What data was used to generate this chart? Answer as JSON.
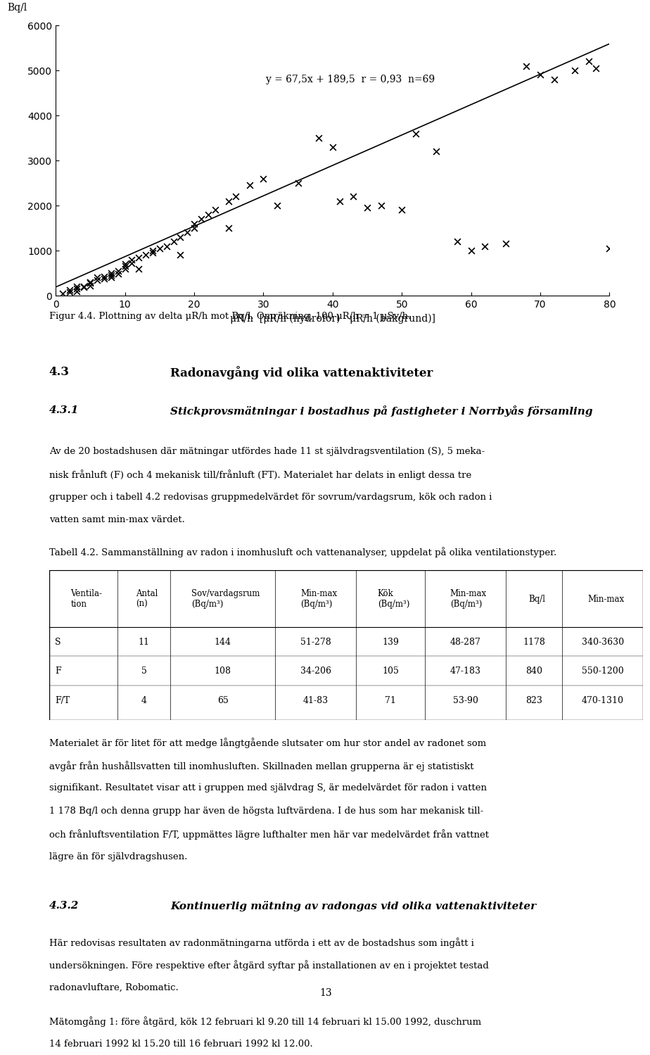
{
  "scatter_x": [
    1,
    2,
    2,
    3,
    3,
    4,
    4,
    5,
    5,
    5,
    6,
    6,
    7,
    7,
    8,
    8,
    9,
    9,
    10,
    10,
    10,
    11,
    11,
    12,
    13,
    14,
    14,
    15,
    16,
    17,
    18,
    19,
    20,
    20,
    21,
    22,
    23,
    25,
    26,
    28,
    30,
    32,
    35,
    38,
    40,
    41,
    43,
    45,
    47,
    50,
    52,
    55,
    58,
    60,
    62,
    65,
    68,
    70,
    72,
    75,
    77,
    78,
    80,
    3,
    5,
    8,
    12,
    18,
    25
  ],
  "scatter_y": [
    50,
    80,
    120,
    100,
    150,
    180,
    200,
    220,
    280,
    300,
    350,
    400,
    380,
    420,
    450,
    500,
    480,
    550,
    600,
    650,
    700,
    720,
    800,
    850,
    900,
    950,
    1000,
    1050,
    1100,
    1200,
    1300,
    1400,
    1500,
    1600,
    1700,
    1800,
    1900,
    2100,
    2200,
    2450,
    2600,
    2000,
    2500,
    3500,
    3300,
    2100,
    2200,
    1950,
    2000,
    1900,
    3600,
    3200,
    1200,
    1000,
    1100,
    1150,
    5100,
    4900,
    4800,
    5000,
    5200,
    5050,
    1050,
    200,
    300,
    400,
    600,
    900,
    1500
  ],
  "equation": "y = 67,5x + 189,5  r = 0,93  n=69",
  "xlabel": "μR/h  [μR/h (hydrofor) - μR/h (bakgrund)]",
  "ylabel": "Bq/l",
  "xlim": [
    0,
    80
  ],
  "ylim": [
    0,
    6000
  ],
  "xticks": [
    0,
    10,
    20,
    30,
    40,
    50,
    60,
    70,
    80
  ],
  "yticks": [
    0,
    1000,
    2000,
    3000,
    4000,
    5000,
    6000
  ],
  "fig_caption": "Figur 4.4. Plottning av delta μR/h mot Bq/l. Omräkning, 100 μR/h = 1 μSv/h.",
  "section_43": "4.3",
  "section_43_title": "Radonavgång vid olika vattenaktiviteter",
  "section_431": "4.3.1",
  "section_431_title": "Stickprovsmätningar i bostadhus på fastigheter i Norrbyås församling",
  "para1": "Av de 20 bostadshusen där mätningar utfördes hade 11 st självdragsventilation (S), 5 mekanisk frånluft (F) och 4 mekanisk till/frånluft (FT). Materialet har delats in enligt dessa tre grupper och i tabell 4.2 redovisas gruppmedelvärdet för sovrum/vardagsrum, kök och radon i vatten samt min-max värdet.",
  "tabell_title": "Tabell 4.2. Sammanställning av radon i inomhusluft och vattenanalyser, uppdelat på olika ventilationstyper.",
  "table_headers": [
    "Ventila-\ntion",
    "Antal\n(n)",
    "Sov/vardagsrum\n(Bq/m³)",
    "Min-max\n(Bq/m³)",
    "Kök\n(Bq/m³)",
    "Min-max\n(Bq/m³)",
    "Bq/l",
    "Min-max"
  ],
  "table_rows": [
    [
      "S",
      "11",
      "144",
      "51-278",
      "139",
      "48-287",
      "1178",
      "340-3630"
    ],
    [
      "F",
      "5",
      "108",
      "34-206",
      "105",
      "47-183",
      "840",
      "550-1200"
    ],
    [
      "F/T",
      "4",
      "65",
      "41-83",
      "71",
      "53-90",
      "823",
      "470-1310"
    ]
  ],
  "para2": "Materialet är för litet för att medge långtgående slutsater om hur stor andel av radonet som avgår från hushållsvatten till inomhusluften. Skillnaden mellan grupperna är ej statistiskt signifikant. Resultatet visar att i gruppen med självdrag S, är medelvärdet för radon i vatten 1 178 Bq/l och denna grupp har även de högsta luftvärdena. I de hus som har mekanisk till- och frånluftsventilation F/T, uppmättes lägre lufthalter men här var medelvärdet från vattnet lägre än för självdragshusen.",
  "section_432": "4.3.2",
  "section_432_title": "Kontinuerlig mätning av radongas vid olika vattenaktiviteter",
  "para3": "Här redovisas resultaten av radonmätningarna utförda i ett av de bostadshus som ingått i undersökningen. Före respektive efter åtgärd syftar på installationen av en i projektet testad radonavluftare, Robomatic.",
  "para4": "Mätomgång 1: före åtgärd, kök 12 februari kl 9.20 till 14 februari kl 15.00 1992, duschrum 14 februari 1992 kl 15.20 till 16 februari 1992 kl 12.00.",
  "page_number": "13",
  "bg_color": "#ffffff",
  "text_color": "#000000",
  "line_color": "#000000"
}
